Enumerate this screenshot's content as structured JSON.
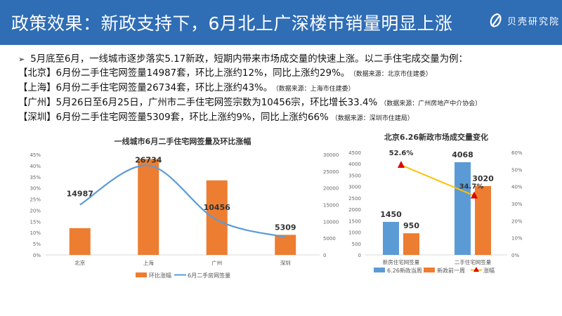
{
  "header": {
    "title": "政策效果：新政支持下，6月北上广深楼市销量明显上涨",
    "logo_text": "贝壳研究院"
  },
  "intro": {
    "bullet": "➢",
    "text": "5月底至6月，一线城市逐步落实5.17新政，短期内带来市场成交量的快速上涨。以二手住宅成交量为例："
  },
  "cities": [
    {
      "text": "【北京】6月份二手住宅网签量14987套，环比上涨约12%，同比上涨约29%。",
      "source": "（数据来源：北京市住建委）"
    },
    {
      "text": "【上海】6月份二手住宅网签量26734套，环比上涨约43%。",
      "source": "（数据来源：上海市住建委）"
    },
    {
      "text": "【广州】5月26日至6月25日，广州市二手住宅网签宗数为10456宗，环比增长33.4%",
      "source": "（数据来源：广州房地产中介协会）"
    },
    {
      "text": "【深圳】6月份二手住宅网签量5309套，环比上涨约9%，同比上涨约66%",
      "source": "（数据来源：深圳市住建局）"
    }
  ],
  "colors": {
    "header": "#2f6db5",
    "orange": "#ed7d31",
    "blue": "#5b9bd5",
    "yellow": "#ffc000",
    "red": "#e00000"
  },
  "chart_data": [
    {
      "type": "bar",
      "title": "一线城市6月二手住宅网签量及环比涨幅",
      "categories": [
        "北京",
        "上海",
        "广州",
        "深圳"
      ],
      "series": [
        {
          "name": "环比涨幅",
          "type": "bar",
          "axis": "left",
          "values": [
            12,
            43,
            33.4,
            9
          ]
        },
        {
          "name": "6月二手房网签量",
          "type": "line",
          "axis": "right",
          "values": [
            14987,
            26734,
            10456,
            5309
          ],
          "labels": [
            "14987",
            "26734",
            "10456",
            "5309"
          ]
        }
      ],
      "yleft": {
        "range": [
          0,
          45
        ],
        "ticks": [
          "0%",
          "5%",
          "10%",
          "15%",
          "20%",
          "25%",
          "30%",
          "35%",
          "40%",
          "45%"
        ]
      },
      "yright": {
        "range": [
          0,
          30000
        ],
        "ticks": [
          "0",
          "5000",
          "10000",
          "15000",
          "20000",
          "25000",
          "30000"
        ]
      },
      "legend": "bottom"
    },
    {
      "type": "bar",
      "title": "北京6.26新政市场成交量变化",
      "categories": [
        "新房住宅网签量",
        "二手住宅网签量"
      ],
      "series": [
        {
          "name": "6.26新政当周",
          "type": "bar",
          "axis": "left",
          "values": [
            1450,
            4068
          ],
          "labels": [
            "1450",
            "4068"
          ]
        },
        {
          "name": "新政前一周",
          "type": "bar",
          "axis": "left",
          "values": [
            950,
            3020
          ],
          "labels": [
            "950",
            "3020"
          ]
        },
        {
          "name": "涨幅",
          "type": "line",
          "axis": "right",
          "values": [
            52.6,
            34.7
          ],
          "labels": [
            "52.6%",
            "34.7%"
          ]
        }
      ],
      "yleft": {
        "range": [
          0,
          4500
        ],
        "ticks": [
          "0",
          "500",
          "1000",
          "1500",
          "2000",
          "2500",
          "3000",
          "3500",
          "4000",
          "4500"
        ]
      },
      "yright": {
        "range": [
          0,
          60
        ],
        "ticks": [
          "0%",
          "10%",
          "20%",
          "30%",
          "40%",
          "50%",
          "60%"
        ]
      },
      "legend": "bottom"
    }
  ]
}
